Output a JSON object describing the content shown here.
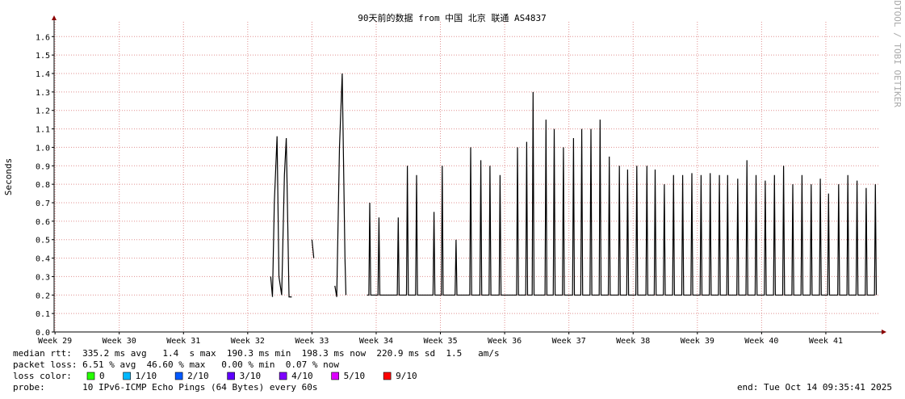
{
  "chart_data": {
    "type": "line",
    "title": "90天前的数据 from 中国 北京 联通 AS4837",
    "ylabel": "Seconds",
    "watermark": "RRDTOOL / TOBI OETIKER",
    "ylim": [
      0,
      1.68
    ],
    "yticks": [
      {
        "value": 0,
        "label": "0.0"
      },
      0.1,
      0.2,
      0.3,
      0.4,
      0.5,
      0.6,
      0.7,
      0.8,
      0.9,
      {
        "value": 1,
        "label": "1.0"
      },
      1.1,
      1.2,
      1.3,
      1.4,
      1.5,
      1.6
    ],
    "xlim": [
      -0.1,
      89.9
    ],
    "xticks": [
      {
        "value": 0,
        "label": "Week 29"
      },
      {
        "value": 7,
        "label": "Week 30"
      },
      {
        "value": 14,
        "label": "Week 31"
      },
      {
        "value": 21,
        "label": "Week 32"
      },
      {
        "value": 28,
        "label": "Week 33"
      },
      {
        "value": 35,
        "label": "Week 34"
      },
      {
        "value": 42,
        "label": "Week 35"
      },
      {
        "value": 49,
        "label": "Week 36"
      },
      {
        "value": 56,
        "label": "Week 37"
      },
      {
        "value": 63,
        "label": "Week 38"
      },
      {
        "value": 70,
        "label": "Week 39"
      },
      {
        "value": 77,
        "label": "Week 40"
      },
      {
        "value": 84,
        "label": "Week 41"
      }
    ],
    "grid": true,
    "series": [
      {
        "name": "median rtt",
        "color": "#000000",
        "x": [
          23.5,
          23.7,
          23.9,
          24.2,
          24.4,
          24.7,
          25.0,
          25.2,
          25.5,
          25.8,
          27.0,
          28.0,
          28.2,
          29.5,
          30.5,
          30.7,
          31.0,
          31.3,
          31.6,
          31.7,
          33.0,
          34.0,
          34.2,
          34.3,
          34.4,
          35.2,
          35.3,
          35.4,
          37.3,
          37.4,
          37.5,
          38.3,
          38.4,
          38.5,
          39.3,
          39.4,
          39.5,
          41.2,
          41.3,
          41.4,
          42.1,
          42.2,
          42.3,
          43.6,
          43.7,
          43.8,
          45.2,
          45.3,
          45.4,
          46.3,
          46.4,
          46.5,
          47.3,
          47.4,
          47.5,
          48.4,
          48.5,
          48.6,
          50.3,
          50.4,
          50.5,
          51.3,
          51.4,
          51.5,
          52.0,
          52.1,
          52.2,
          53.4,
          53.5,
          53.6,
          54.3,
          54.4,
          54.5,
          55.3,
          55.4,
          55.5,
          56.4,
          56.5,
          56.6,
          57.3,
          57.4,
          57.5,
          58.3,
          58.4,
          58.5,
          59.3,
          59.4,
          59.5,
          60.3,
          60.4,
          60.5,
          61.4,
          61.5,
          61.6,
          62.3,
          62.4,
          62.5,
          63.3,
          63.4,
          63.5,
          64.4,
          64.5,
          64.6,
          65.3,
          65.4,
          65.5,
          66.3,
          66.4,
          66.5,
          67.3,
          67.4,
          67.5,
          68.3,
          68.4,
          68.5,
          69.3,
          69.4,
          69.5,
          70.3,
          70.4,
          70.5,
          71.3,
          71.4,
          71.5,
          72.3,
          72.4,
          72.5,
          73.2,
          73.3,
          73.4,
          74.3,
          74.4,
          74.5,
          75.3,
          75.4,
          75.5,
          76.3,
          76.4,
          76.5,
          77.3,
          77.4,
          77.5,
          78.3,
          78.4,
          78.5,
          79.3,
          79.4,
          79.5,
          80.3,
          80.4,
          80.5,
          81.3,
          81.4,
          81.5,
          82.3,
          82.4,
          82.5,
          83.3,
          83.4,
          83.5,
          84.2,
          84.3,
          84.4,
          85.3,
          85.4,
          85.5,
          86.3,
          86.4,
          86.5,
          87.3,
          87.4,
          87.5,
          88.3,
          88.4,
          88.5,
          89.3,
          89.4,
          89.5
        ],
        "values": [
          0.3,
          0.19,
          0.7,
          1.06,
          0.3,
          0.2,
          0.85,
          1.05,
          0.19,
          0.19,
          null,
          0.5,
          0.4,
          null,
          0.25,
          0.19,
          1.0,
          1.4,
          0.4,
          0.2,
          null,
          0.2,
          0.2,
          0.7,
          0.2,
          0.2,
          0.62,
          0.2,
          0.2,
          0.62,
          0.2,
          0.2,
          0.9,
          0.2,
          0.2,
          0.85,
          0.2,
          0.2,
          0.65,
          0.2,
          0.2,
          0.9,
          0.2,
          0.2,
          0.5,
          0.2,
          0.2,
          1.0,
          0.2,
          0.2,
          0.93,
          0.2,
          0.2,
          0.9,
          0.2,
          0.2,
          0.85,
          0.2,
          0.2,
          1.0,
          0.2,
          0.2,
          1.03,
          0.2,
          0.2,
          1.3,
          0.2,
          0.2,
          1.15,
          0.2,
          0.2,
          1.1,
          0.2,
          0.2,
          1.0,
          0.2,
          0.2,
          1.05,
          0.2,
          0.2,
          1.1,
          0.2,
          0.2,
          1.1,
          0.2,
          0.2,
          1.15,
          0.2,
          0.2,
          0.95,
          0.2,
          0.2,
          0.9,
          0.2,
          0.2,
          0.88,
          0.2,
          0.2,
          0.9,
          0.2,
          0.2,
          0.9,
          0.2,
          0.2,
          0.88,
          0.2,
          0.2,
          0.8,
          0.2,
          0.2,
          0.85,
          0.2,
          0.2,
          0.85,
          0.2,
          0.2,
          0.86,
          0.2,
          0.2,
          0.85,
          0.2,
          0.2,
          0.86,
          0.2,
          0.2,
          0.85,
          0.2,
          0.2,
          0.85,
          0.2,
          0.2,
          0.83,
          0.2,
          0.2,
          0.93,
          0.2,
          0.2,
          0.85,
          0.2,
          0.2,
          0.82,
          0.2,
          0.2,
          0.85,
          0.2,
          0.2,
          0.9,
          0.2,
          0.2,
          0.8,
          0.2,
          0.2,
          0.85,
          0.2,
          0.2,
          0.8,
          0.2,
          0.2,
          0.83,
          0.2,
          0.2,
          0.75,
          0.2,
          0.2,
          0.8,
          0.2,
          0.2,
          0.85,
          0.2,
          0.2,
          0.82,
          0.2,
          0.2,
          0.78,
          0.2,
          0.2,
          0.8,
          0.2
        ]
      }
    ],
    "footer": {
      "median": "median rtt:  335.2 ms avg   1.4  s max  190.3 ms min  198.3 ms now  220.9 ms sd  1.5   am/s",
      "loss": "packet loss: 6.51 % avg  46.60 % max   0.00 % min  0.07 % now",
      "loss_color_label": "loss color:",
      "loss_colors": [
        {
          "name": "0",
          "color": "#26ff00"
        },
        {
          "name": "1/10",
          "color": "#00b8ff"
        },
        {
          "name": "2/10",
          "color": "#0059ff"
        },
        {
          "name": "3/10",
          "color": "#5e00ff"
        },
        {
          "name": "4/10",
          "color": "#7e00ff"
        },
        {
          "name": "5/10",
          "color": "#dd00ff"
        },
        {
          "name": "9/10",
          "color": "#ff0000"
        }
      ],
      "probe": "probe:       10 IPv6-ICMP Echo Pings (64 Bytes) every 60s",
      "end": "end: Tue Oct 14 09:35:41 2025"
    }
  }
}
